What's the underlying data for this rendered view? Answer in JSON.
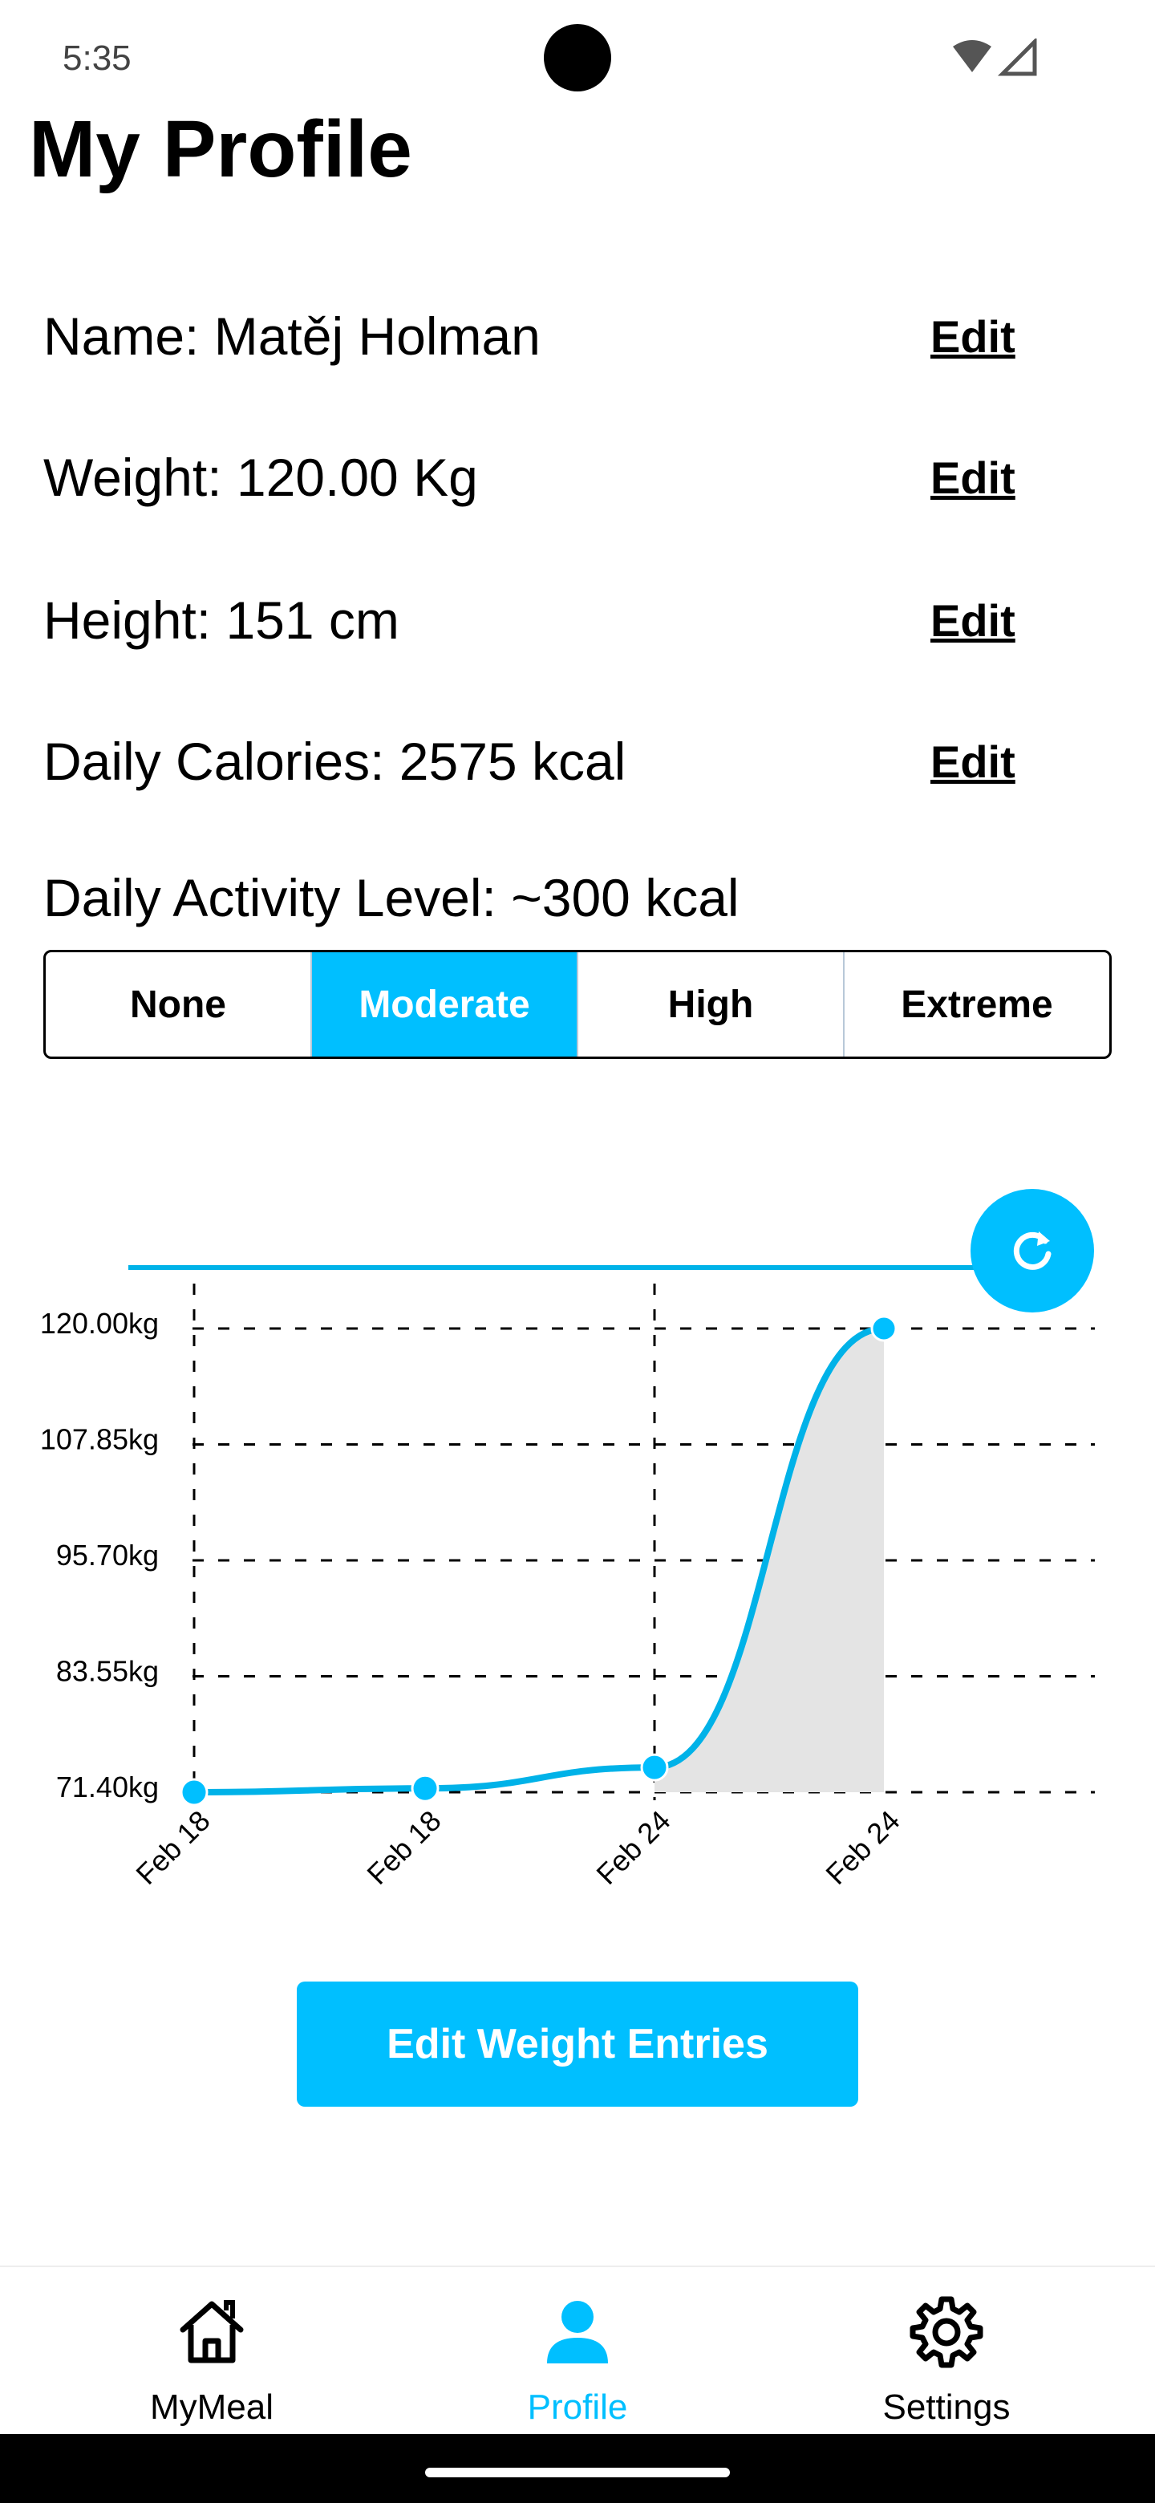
{
  "status_bar": {
    "time": "5:35"
  },
  "title": "My Profile",
  "profile": {
    "rows": [
      {
        "label": "Name: Matěj Holman",
        "action": "Edit"
      },
      {
        "label": "Weight: 120.00 Kg",
        "action": "Edit"
      },
      {
        "label": "Height: 151 cm",
        "action": "Edit"
      },
      {
        "label": "Daily Calories: 2575 kcal",
        "action": "Edit"
      }
    ]
  },
  "activity": {
    "label": "Daily Activity Level: ~300 kcal",
    "options": [
      "None",
      "Moderate",
      "High",
      "Extreme"
    ],
    "selected": "Moderate"
  },
  "chart_data": {
    "type": "line",
    "x": [
      "Feb 18",
      "Feb 18",
      "Feb 24",
      "Feb 24"
    ],
    "values": [
      71.4,
      71.8,
      74.0,
      120.0
    ],
    "yticks": [
      "120.00kg",
      "107.85kg",
      "95.70kg",
      "83.55kg",
      "71.40kg"
    ],
    "ylim": [
      71.4,
      120.0
    ],
    "grid": true,
    "line_color": "#00b2e8",
    "fill_color": "#e4e4e4"
  },
  "actions": {
    "edit_weight_entries": "Edit Weight Entries"
  },
  "nav": [
    {
      "label": "MyMeal",
      "icon": "home-icon",
      "active": false
    },
    {
      "label": "Profile",
      "icon": "person-icon",
      "active": true
    },
    {
      "label": "Settings",
      "icon": "gear-icon",
      "active": false
    }
  ],
  "colors": {
    "accent": "#00bfff"
  }
}
